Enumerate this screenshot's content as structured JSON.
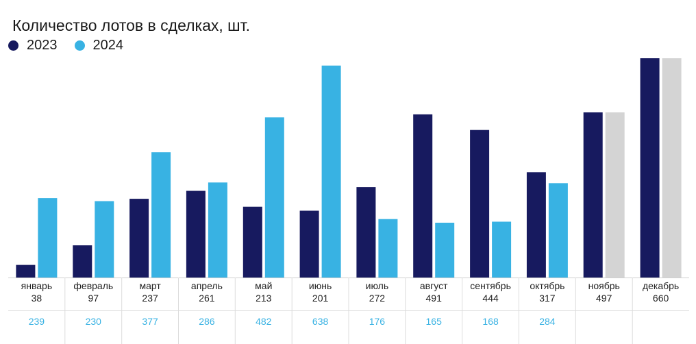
{
  "chart_data": {
    "type": "bar",
    "title": "Количество лотов в сделках, шт.",
    "categories": [
      "январь",
      "февраль",
      "март",
      "апрель",
      "май",
      "июнь",
      "июль",
      "август",
      "сентябрь",
      "октябрь",
      "ноябрь",
      "декабрь"
    ],
    "series": [
      {
        "name": "2023",
        "color": "#171a5f",
        "values": [
          38,
          97,
          237,
          261,
          213,
          201,
          272,
          491,
          444,
          317,
          497,
          660
        ]
      },
      {
        "name": "2024",
        "color": "#38b2e3",
        "values": [
          239,
          230,
          377,
          286,
          482,
          638,
          176,
          165,
          168,
          284,
          null,
          null
        ]
      }
    ],
    "placeholder_color": "#d4d4d4",
    "ylim": [
      0,
      660
    ],
    "grid": false,
    "legend_position": "top-left",
    "table": {
      "row_2023": [
        "38",
        "97",
        "237",
        "261",
        "213",
        "201",
        "272",
        "491",
        "444",
        "317",
        "497",
        "660"
      ],
      "row_2024": [
        "239",
        "230",
        "377",
        "286",
        "482",
        "638",
        "176",
        "165",
        "168",
        "284",
        "",
        ""
      ]
    }
  }
}
